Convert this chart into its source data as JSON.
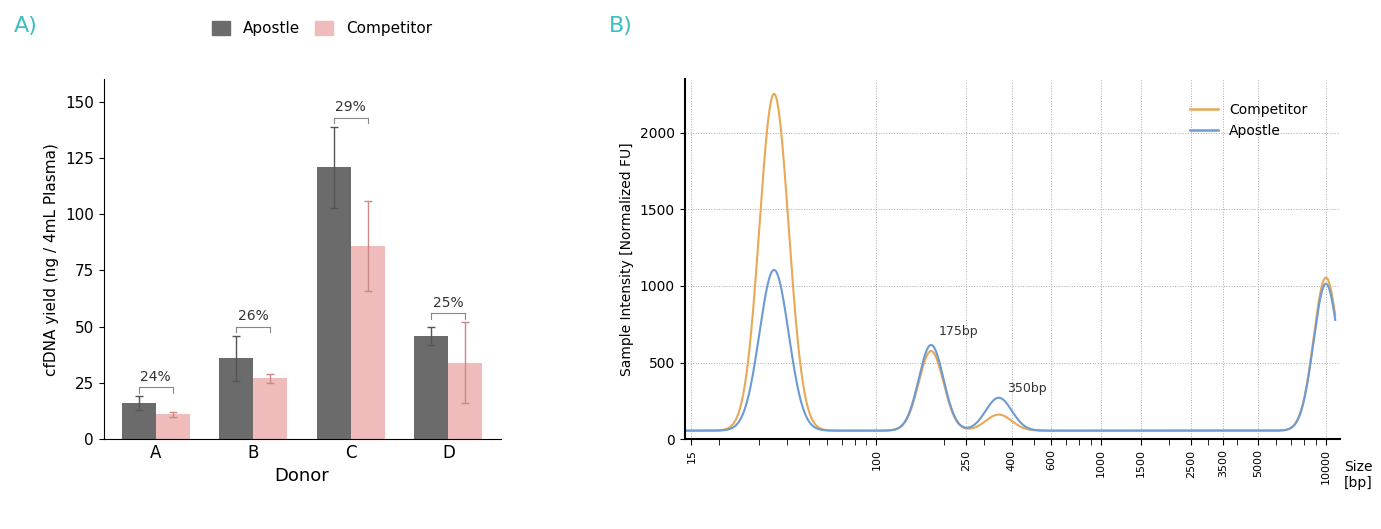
{
  "panel_A": {
    "donors": [
      "A",
      "B",
      "C",
      "D"
    ],
    "apostle_values": [
      16,
      36,
      121,
      46
    ],
    "apostle_errors": [
      3,
      10,
      18,
      4
    ],
    "competitor_values": [
      11,
      27,
      86,
      34
    ],
    "competitor_errors": [
      1,
      2,
      20,
      18
    ],
    "apostle_color": "#6b6b6b",
    "competitor_color": "#f0bbbb",
    "ylabel": "cfDNA yield (ng / 4mL Plasma)",
    "xlabel": "Donor",
    "ylim": [
      0,
      160
    ],
    "yticks": [
      0,
      25,
      50,
      75,
      100,
      125,
      150
    ],
    "percentages": [
      "24%",
      "26%",
      "29%",
      "25%"
    ],
    "legend_apostle": "Apostle",
    "legend_competitor": "Competitor"
  },
  "panel_B": {
    "competitor_color": "#E8A857",
    "apostle_color": "#6B9BD2",
    "ylabel": "Sample Intensity [Normalized FU]",
    "xlabel": "Size\n[bp]",
    "ylim": [
      0,
      2350
    ],
    "yticks": [
      0,
      500,
      1000,
      1500,
      2000
    ],
    "xtick_positions": [
      15,
      100,
      250,
      400,
      600,
      1000,
      1500,
      2500,
      3500,
      5000,
      10000
    ],
    "xtick_labels": [
      "15",
      "100",
      "250",
      "400",
      "600",
      "1000",
      "1500",
      "2500",
      "3500",
      "5000",
      "10000"
    ],
    "annotation_175": "175bp",
    "annotation_350": "350bp",
    "legend_competitor": "Competitor",
    "legend_apostle": "Apostle"
  },
  "label_A_color": "#3bbfbf",
  "label_B_color": "#3bbfbf",
  "background_color": "#ffffff"
}
